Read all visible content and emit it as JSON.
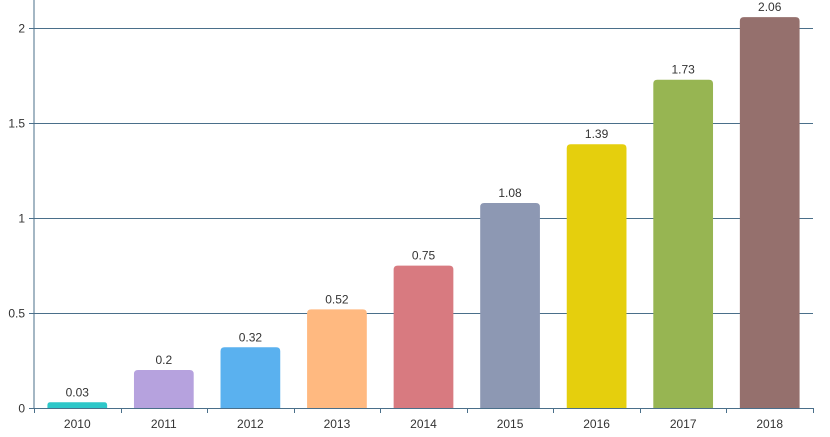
{
  "chart_data": {
    "type": "bar",
    "title": "",
    "xlabel": "",
    "ylabel": "",
    "categories": [
      "2010",
      "2011",
      "2012",
      "2013",
      "2014",
      "2015",
      "2016",
      "2017",
      "2018"
    ],
    "values": [
      0.03,
      0.2,
      0.32,
      0.52,
      0.75,
      1.08,
      1.39,
      1.73,
      2.06
    ],
    "colors": [
      "#2ec7c9",
      "#b6a2de",
      "#5ab1ef",
      "#ffb980",
      "#d87a80",
      "#8d98b3",
      "#e5cf0d",
      "#97b552",
      "#95706d"
    ],
    "y_ticks": [
      0,
      0.5,
      1,
      1.5,
      2
    ],
    "y_tick_labels": [
      "0",
      "0.5",
      "1",
      "1.5",
      "2"
    ],
    "ylim": [
      0,
      2.15
    ],
    "grid": true,
    "axis_color": "#4a6f8a",
    "grid_color": "#4a6f8a"
  }
}
